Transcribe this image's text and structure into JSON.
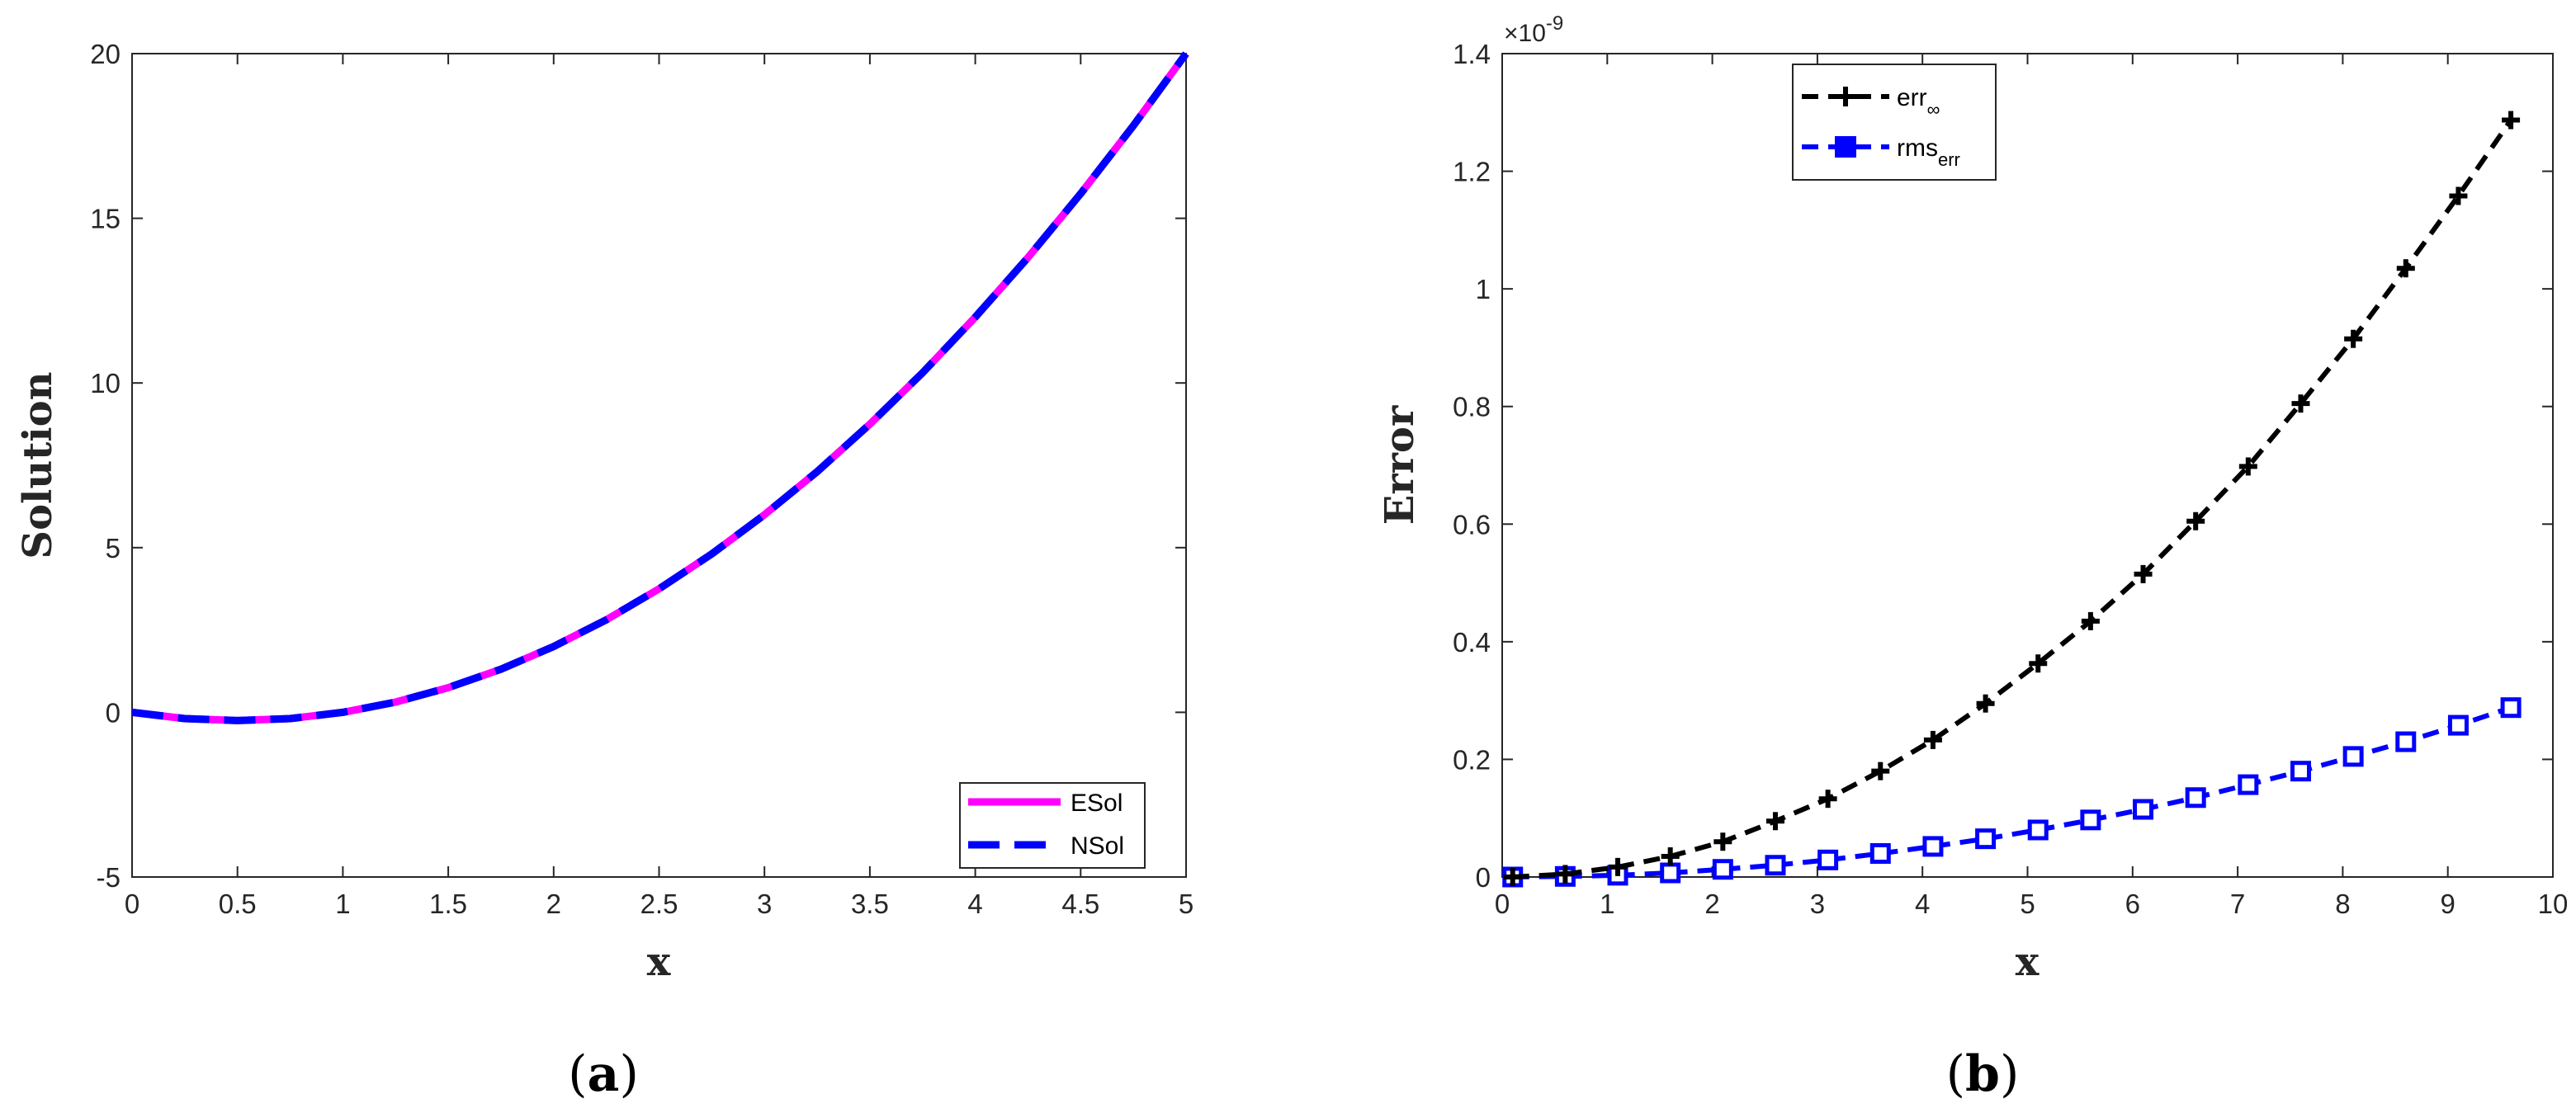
{
  "chart_data": [
    {
      "type": "line",
      "panel_label": "a",
      "xlabel": "x",
      "ylabel": "Solution",
      "xlim": [
        0,
        5
      ],
      "ylim": [
        -5,
        20
      ],
      "xticks": [
        "0",
        "0.5",
        "1",
        "1.5",
        "2",
        "2.5",
        "3",
        "3.5",
        "4",
        "4.5",
        "5"
      ],
      "yticks": [
        "-5",
        "0",
        "5",
        "10",
        "15",
        "20"
      ],
      "legend_position": "bottom-right",
      "x": [
        0,
        0.25,
        0.5,
        0.75,
        1,
        1.25,
        1.5,
        1.75,
        2,
        2.25,
        2.5,
        2.75,
        3,
        3.25,
        3.5,
        3.75,
        4,
        4.25,
        4.5,
        4.75,
        5
      ],
      "series": [
        {
          "name": "ESol",
          "color": "#ff00ff",
          "style": "solid",
          "values": [
            0,
            -0.19,
            -0.25,
            -0.19,
            0,
            0.31,
            0.75,
            1.31,
            2,
            2.81,
            3.75,
            4.81,
            6,
            7.31,
            8.75,
            10.31,
            12,
            13.81,
            15.75,
            17.81,
            20
          ]
        },
        {
          "name": "NSol",
          "color": "#0000ff",
          "style": "dashed",
          "values": [
            0,
            -0.19,
            -0.25,
            -0.19,
            0,
            0.31,
            0.75,
            1.31,
            2,
            2.81,
            3.75,
            4.81,
            6,
            7.31,
            8.75,
            10.31,
            12,
            13.81,
            15.75,
            17.81,
            20
          ]
        }
      ]
    },
    {
      "type": "line",
      "panel_label": "b",
      "xlabel": "x",
      "ylabel": "Error",
      "xlim": [
        0,
        10
      ],
      "ylim": [
        0,
        1.4
      ],
      "y_exponent_base": "×10",
      "y_exponent_power": "-9",
      "xticks": [
        "0",
        "1",
        "2",
        "3",
        "4",
        "5",
        "6",
        "7",
        "8",
        "9",
        "10"
      ],
      "yticks": [
        "0",
        "0.2",
        "0.4",
        "0.6",
        "0.8",
        "1",
        "1.2",
        "1.4"
      ],
      "legend_position": "top-left",
      "x": [
        0.1,
        0.6,
        1.1,
        1.6,
        2.1,
        2.6,
        3.1,
        3.6,
        4.1,
        4.6,
        5.1,
        5.6,
        6.1,
        6.6,
        7.1,
        7.6,
        8.1,
        8.6,
        9.1,
        9.6
      ],
      "series": [
        {
          "name": "err",
          "name_subscript": "∞",
          "color": "#000000",
          "marker": "plus",
          "style": "dashed",
          "values": [
            0,
            0.005,
            0.017,
            0.035,
            0.06,
            0.095,
            0.133,
            0.18,
            0.233,
            0.295,
            0.363,
            0.435,
            0.515,
            0.605,
            0.698,
            0.805,
            0.915,
            1.035,
            1.158,
            1.287
          ]
        },
        {
          "name": "rms",
          "name_subscript": "err",
          "color": "#0000ff",
          "marker": "square",
          "style": "dashed",
          "values": [
            0,
            0.001,
            0.003,
            0.007,
            0.013,
            0.02,
            0.029,
            0.04,
            0.052,
            0.065,
            0.08,
            0.097,
            0.115,
            0.135,
            0.157,
            0.18,
            0.205,
            0.23,
            0.258,
            0.288
          ]
        }
      ]
    }
  ]
}
